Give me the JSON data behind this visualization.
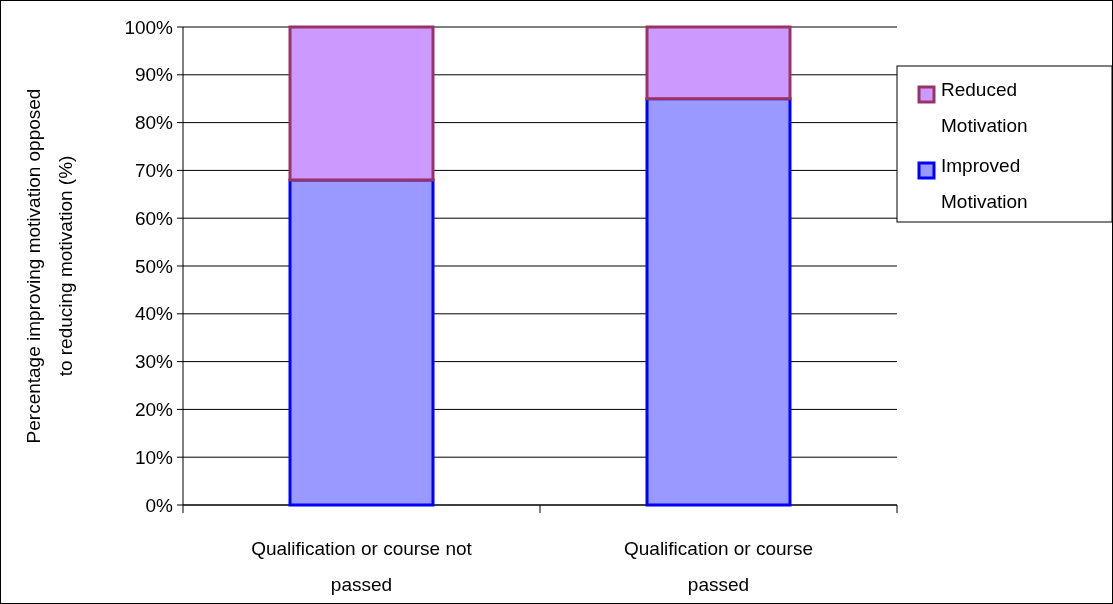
{
  "chart_data": {
    "type": "bar",
    "stacked": true,
    "categories": [
      "Qualification or course not passed",
      "Qualification or course passed"
    ],
    "ylabel": "Percentage improving motivation opposed to reducing motivation (%)",
    "series": [
      {
        "name": "Improved Motivation",
        "color": "#9999ff",
        "values": [
          68,
          85
        ]
      },
      {
        "name": "Reduced Motivation",
        "color": "#cc99ff",
        "values": [
          32,
          15
        ]
      }
    ],
    "ylim": [
      0,
      100
    ],
    "yticks": [
      {
        "value": 0,
        "label": "0%"
      },
      {
        "value": 10,
        "label": "10%"
      },
      {
        "value": 20,
        "label": "20%"
      },
      {
        "value": 30,
        "label": "30%"
      },
      {
        "value": 40,
        "label": "40%"
      },
      {
        "value": 50,
        "label": "50%"
      },
      {
        "value": 60,
        "label": "60%"
      },
      {
        "value": 70,
        "label": "70%"
      },
      {
        "value": 80,
        "label": "80%"
      },
      {
        "value": 90,
        "label": "90%"
      },
      {
        "value": 100,
        "label": "100%"
      }
    ],
    "grid": "y",
    "legend": "right"
  }
}
